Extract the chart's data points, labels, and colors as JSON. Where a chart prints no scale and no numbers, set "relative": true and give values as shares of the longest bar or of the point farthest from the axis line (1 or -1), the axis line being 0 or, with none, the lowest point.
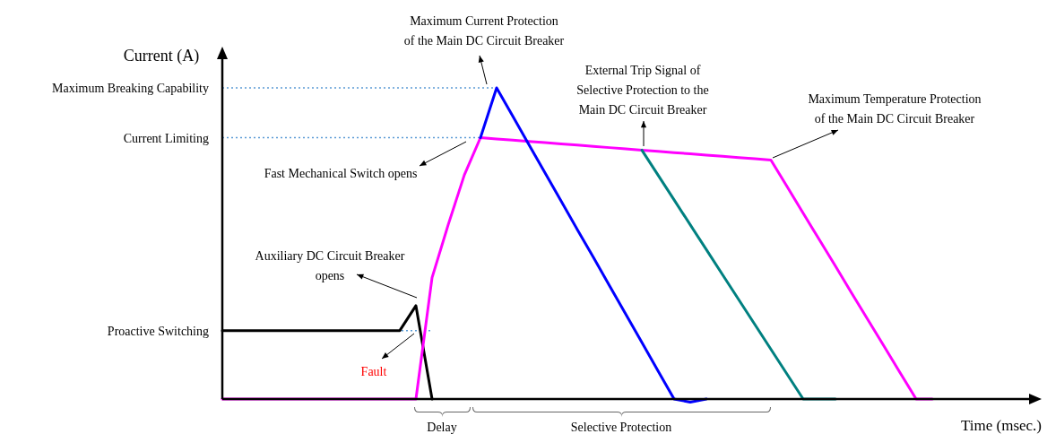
{
  "chart_data": {
    "type": "line",
    "relative": true,
    "xlabel": "Time (msec.)",
    "ylabel": "Current (A)",
    "marker": "none",
    "line_style": "solid",
    "categories": [
      null,
      null,
      null,
      null,
      null,
      null,
      null,
      null,
      null,
      null,
      null,
      null,
      null,
      null,
      null,
      null,
      null,
      null,
      null,
      null,
      null,
      null,
      null,
      null,
      null,
      null,
      null,
      null,
      null,
      null,
      null,
      null,
      null,
      null,
      null,
      null,
      null,
      null,
      null,
      null,
      null,
      null,
      null,
      null,
      null,
      null,
      null,
      null,
      null,
      null
    ],
    "series": [
      {
        "color": "#000000",
        "values": [
          0.22,
          0.22,
          0.22,
          0.22,
          0.22,
          0.22,
          0.22,
          0.22,
          0.22,
          0.22,
          0.22,
          0.22,
          0.3,
          0,
          null,
          null,
          null,
          null,
          null,
          null,
          null,
          null,
          null,
          null,
          null,
          null,
          null,
          null,
          null,
          null,
          null,
          null,
          null,
          null,
          null,
          null,
          null,
          null,
          null,
          null,
          null,
          null,
          null,
          null,
          null,
          null,
          null,
          null,
          null,
          null
        ]
      },
      {
        "color": "#ff00ff",
        "values": [
          0,
          0,
          0,
          0,
          0,
          0,
          0,
          0,
          0,
          0,
          0,
          0,
          0,
          0.39,
          0.56,
          0.72,
          0.84,
          0.836,
          0.832,
          0.828,
          0.824,
          0.82,
          0.816,
          0.812,
          0.808,
          0.804,
          0.8,
          0.796,
          0.792,
          0.788,
          0.784,
          0.78,
          0.776,
          0.772,
          0.768,
          0.683,
          0.597,
          0.512,
          0.427,
          0.341,
          0.256,
          0.171,
          0.085,
          0,
          0,
          null,
          null,
          null,
          null,
          null
        ]
      },
      {
        "color": "#0000ff",
        "values": [
          null,
          null,
          null,
          null,
          null,
          null,
          null,
          null,
          null,
          null,
          null,
          null,
          null,
          null,
          null,
          null,
          0.84,
          1,
          0.909,
          0.818,
          0.727,
          0.636,
          0.545,
          0.455,
          0.364,
          0.273,
          0.182,
          0.091,
          0,
          -0.01,
          0,
          null,
          null,
          null,
          null,
          null,
          null,
          null,
          null,
          null,
          null,
          null,
          null,
          null,
          null,
          null,
          null,
          null,
          null,
          null
        ]
      },
      {
        "color": "#008080",
        "values": [
          null,
          null,
          null,
          null,
          null,
          null,
          null,
          null,
          null,
          null,
          null,
          null,
          null,
          null,
          null,
          null,
          null,
          null,
          null,
          null,
          null,
          null,
          null,
          null,
          null,
          null,
          0.8,
          0.72,
          0.64,
          0.56,
          0.48,
          0.4,
          0.32,
          0.24,
          0.16,
          0.08,
          0,
          0,
          0,
          null,
          null,
          null,
          null,
          null,
          null,
          null,
          null,
          null,
          null,
          null
        ]
      }
    ],
    "ref_lines": [
      {
        "axis": "y",
        "value": 1,
        "label": "Maximum Breaking Capability",
        "color": "#5b9bd5",
        "line_style": "dotted"
      },
      {
        "axis": "y",
        "value": 0.84,
        "label": "Current Limiting",
        "color": "#5b9bd5",
        "line_style": "dotted"
      },
      {
        "axis": "y",
        "value": 0.22,
        "label": "Proactive Switching",
        "color": "#5b9bd5",
        "line_style": "dotted"
      }
    ],
    "annotations": [
      "Maximum Current Protection\nof the Main DC Circuit Breaker",
      "External Trip Signal of\nSelective Protection to the\nMain DC Circuit Breaker",
      "Maximum Temperature Protection\nof the Main DC Circuit Breaker",
      "Fast Mechanical Switch opens",
      "Auxiliary DC Circuit Breaker\nopens",
      "Fault",
      "Delay",
      "Selective Protection"
    ]
  }
}
